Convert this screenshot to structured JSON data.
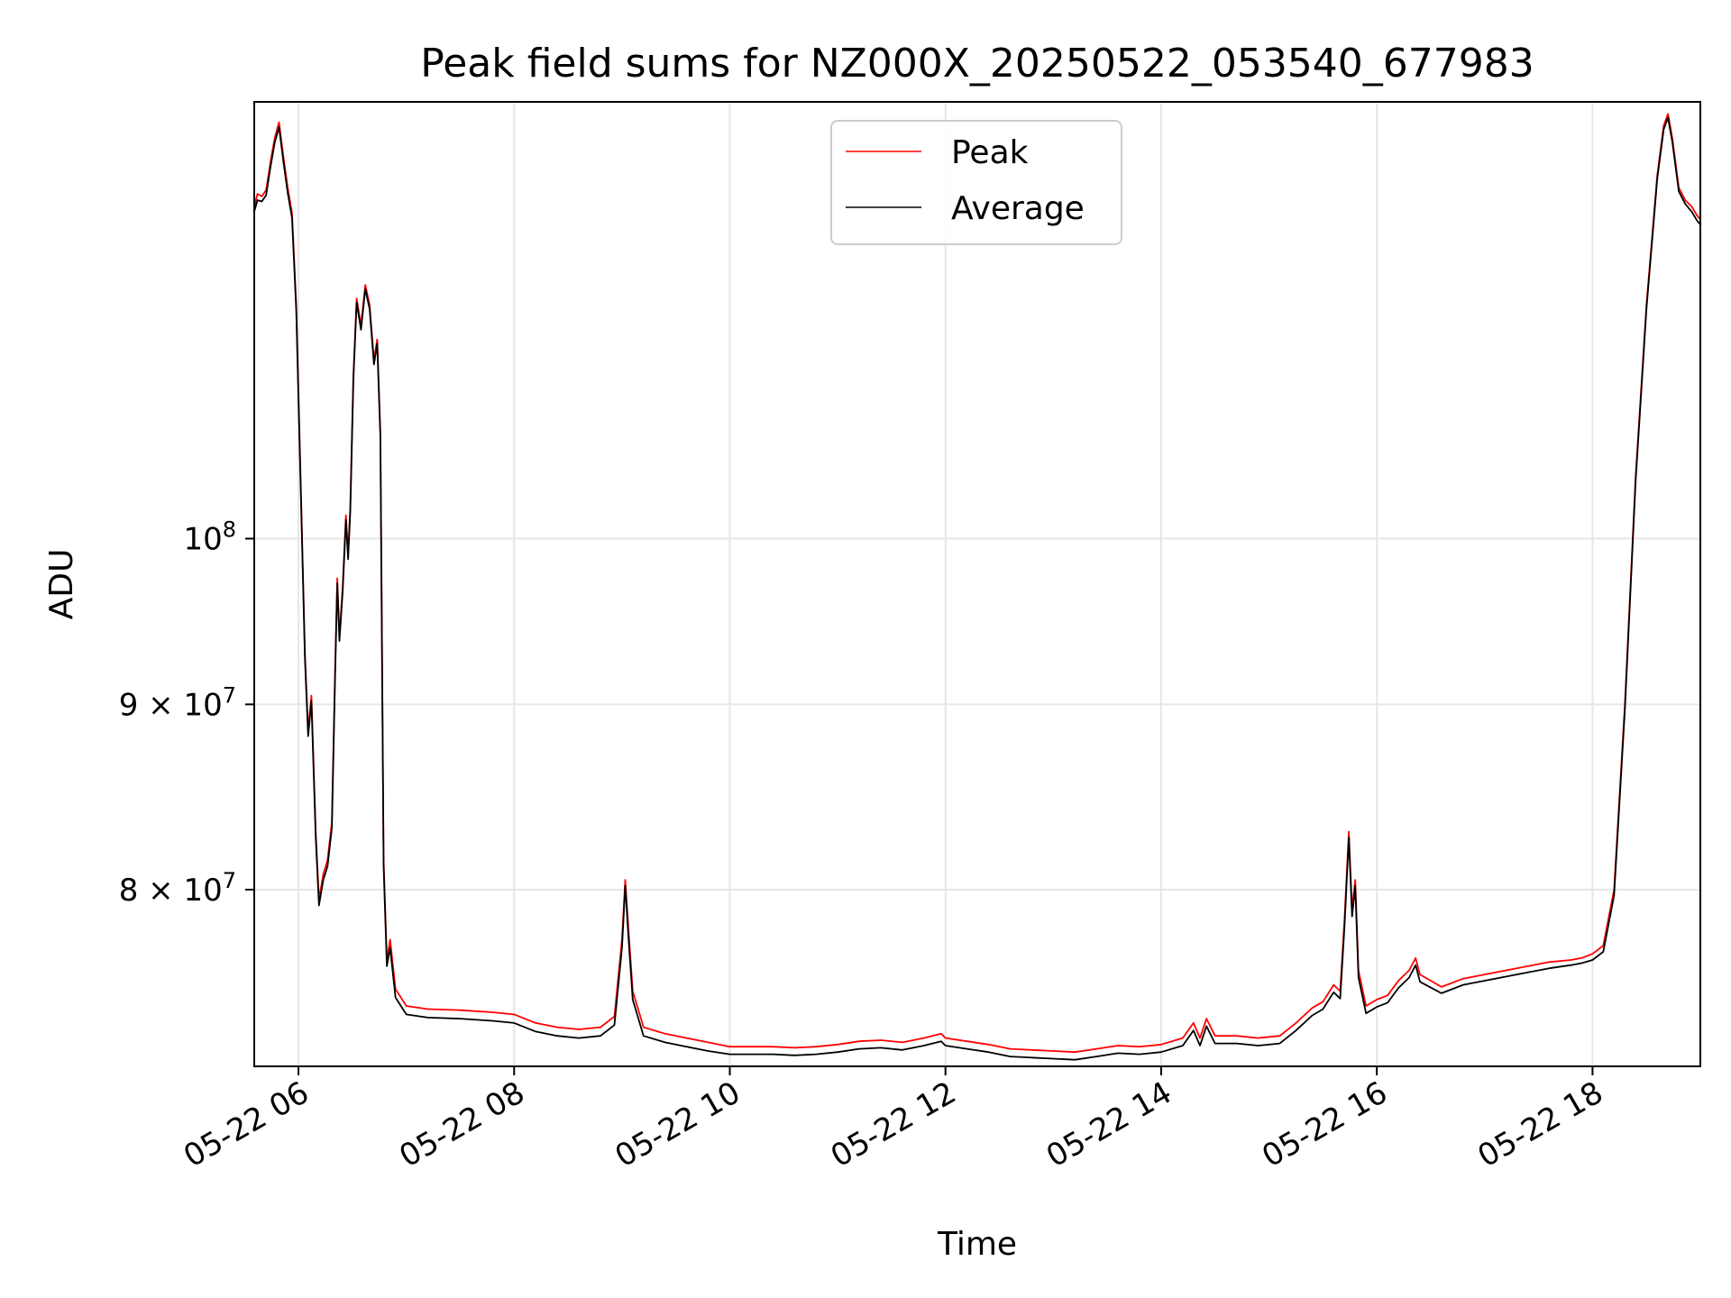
{
  "chart_data": {
    "type": "line",
    "title": "Peak field sums for NZ000X_20250522_053540_677983",
    "xlabel": "Time",
    "ylabel": "ADU",
    "x_unit": "hours of day 2025-05-22 (decimal)",
    "xlim": [
      5.59,
      19.0
    ],
    "ylim": [
      71500000,
      132000000
    ],
    "yscale": "log",
    "grid": true,
    "legend_position": "upper center",
    "x_ticks": [
      {
        "value": 6,
        "label": "05-22 06"
      },
      {
        "value": 8,
        "label": "05-22 08"
      },
      {
        "value": 10,
        "label": "05-22 10"
      },
      {
        "value": 12,
        "label": "05-22 12"
      },
      {
        "value": 14,
        "label": "05-22 14"
      },
      {
        "value": 16,
        "label": "05-22 16"
      },
      {
        "value": 18,
        "label": "05-22 18"
      }
    ],
    "y_ticks": [
      {
        "value": 80000000,
        "label_base": "8 × 10",
        "label_exp": "7"
      },
      {
        "value": 90000000,
        "label_base": "9 × 10",
        "label_exp": "7"
      },
      {
        "value": 100000000,
        "label_base": "10",
        "label_exp": "8"
      }
    ],
    "series": [
      {
        "name": "Peak",
        "color": "#ff0000",
        "points": [
          [
            5.59,
            123500000
          ],
          [
            5.62,
            124500000
          ],
          [
            5.66,
            124300000
          ],
          [
            5.7,
            124800000
          ],
          [
            5.74,
            127000000
          ],
          [
            5.78,
            129000000
          ],
          [
            5.82,
            130300000
          ],
          [
            5.86,
            127500000
          ],
          [
            5.9,
            125000000
          ],
          [
            5.94,
            123000000
          ],
          [
            5.98,
            116000000
          ],
          [
            6.02,
            104000000
          ],
          [
            6.06,
            93000000
          ],
          [
            6.09,
            88500000
          ],
          [
            6.12,
            90500000
          ],
          [
            6.16,
            83000000
          ],
          [
            6.19,
            79500000
          ],
          [
            6.23,
            80800000
          ],
          [
            6.27,
            81500000
          ],
          [
            6.31,
            83500000
          ],
          [
            6.34,
            92000000
          ],
          [
            6.36,
            97500000
          ],
          [
            6.38,
            94000000
          ],
          [
            6.41,
            97000000
          ],
          [
            6.44,
            101500000
          ],
          [
            6.46,
            99000000
          ],
          [
            6.48,
            102000000
          ],
          [
            6.51,
            111000000
          ],
          [
            6.54,
            116500000
          ],
          [
            6.58,
            114500000
          ],
          [
            6.62,
            117500000
          ],
          [
            6.66,
            116000000
          ],
          [
            6.7,
            112000000
          ],
          [
            6.73,
            113500000
          ],
          [
            6.76,
            107000000
          ],
          [
            6.79,
            81500000
          ],
          [
            6.82,
            76500000
          ],
          [
            6.85,
            77500000
          ],
          [
            6.9,
            75100000
          ],
          [
            7.0,
            74300000
          ],
          [
            7.2,
            74150000
          ],
          [
            7.5,
            74100000
          ],
          [
            7.8,
            74000000
          ],
          [
            8.0,
            73900000
          ],
          [
            8.2,
            73500000
          ],
          [
            8.4,
            73300000
          ],
          [
            8.6,
            73200000
          ],
          [
            8.8,
            73300000
          ],
          [
            8.93,
            73800000
          ],
          [
            9.0,
            77500000
          ],
          [
            9.03,
            80500000
          ],
          [
            9.06,
            78000000
          ],
          [
            9.1,
            75000000
          ],
          [
            9.2,
            73300000
          ],
          [
            9.4,
            73000000
          ],
          [
            9.6,
            72800000
          ],
          [
            9.8,
            72600000
          ],
          [
            10.0,
            72400000
          ],
          [
            10.2,
            72400000
          ],
          [
            10.4,
            72400000
          ],
          [
            10.6,
            72350000
          ],
          [
            10.8,
            72400000
          ],
          [
            11.0,
            72500000
          ],
          [
            11.2,
            72650000
          ],
          [
            11.4,
            72700000
          ],
          [
            11.6,
            72600000
          ],
          [
            11.8,
            72800000
          ],
          [
            11.96,
            73000000
          ],
          [
            12.0,
            72800000
          ],
          [
            12.2,
            72650000
          ],
          [
            12.4,
            72500000
          ],
          [
            12.6,
            72300000
          ],
          [
            12.8,
            72250000
          ],
          [
            13.0,
            72200000
          ],
          [
            13.2,
            72150000
          ],
          [
            13.4,
            72300000
          ],
          [
            13.6,
            72450000
          ],
          [
            13.8,
            72400000
          ],
          [
            14.0,
            72500000
          ],
          [
            14.2,
            72800000
          ],
          [
            14.3,
            73500000
          ],
          [
            14.36,
            72800000
          ],
          [
            14.42,
            73700000
          ],
          [
            14.5,
            72900000
          ],
          [
            14.7,
            72900000
          ],
          [
            14.9,
            72800000
          ],
          [
            15.1,
            72900000
          ],
          [
            15.25,
            73500000
          ],
          [
            15.4,
            74200000
          ],
          [
            15.5,
            74500000
          ],
          [
            15.6,
            75300000
          ],
          [
            15.66,
            75000000
          ],
          [
            15.7,
            78500000
          ],
          [
            15.74,
            83000000
          ],
          [
            15.77,
            79000000
          ],
          [
            15.8,
            80500000
          ],
          [
            15.83,
            76000000
          ],
          [
            15.9,
            74300000
          ],
          [
            16.0,
            74600000
          ],
          [
            16.1,
            74800000
          ],
          [
            16.2,
            75500000
          ],
          [
            16.3,
            76000000
          ],
          [
            16.36,
            76600000
          ],
          [
            16.4,
            75800000
          ],
          [
            16.6,
            75200000
          ],
          [
            16.8,
            75600000
          ],
          [
            17.0,
            75800000
          ],
          [
            17.2,
            76000000
          ],
          [
            17.4,
            76200000
          ],
          [
            17.6,
            76400000
          ],
          [
            17.8,
            76500000
          ],
          [
            17.9,
            76600000
          ],
          [
            18.0,
            76800000
          ],
          [
            18.1,
            77200000
          ],
          [
            18.2,
            80000000
          ],
          [
            18.3,
            90000000
          ],
          [
            18.4,
            104000000
          ],
          [
            18.5,
            116000000
          ],
          [
            18.6,
            126000000
          ],
          [
            18.66,
            130000000
          ],
          [
            18.7,
            131000000
          ],
          [
            18.74,
            129000000
          ],
          [
            18.8,
            125000000
          ],
          [
            18.86,
            124000000
          ],
          [
            18.92,
            123500000
          ],
          [
            18.97,
            122800000
          ],
          [
            19.0,
            122500000
          ]
        ]
      },
      {
        "name": "Average",
        "color": "#000000",
        "points": [
          [
            5.59,
            123100000
          ],
          [
            5.62,
            124000000
          ],
          [
            5.66,
            123900000
          ],
          [
            5.7,
            124400000
          ],
          [
            5.74,
            126600000
          ],
          [
            5.78,
            128600000
          ],
          [
            5.82,
            129900000
          ],
          [
            5.86,
            127100000
          ],
          [
            5.9,
            124600000
          ],
          [
            5.94,
            122600000
          ],
          [
            5.98,
            115600000
          ],
          [
            6.02,
            103600000
          ],
          [
            6.06,
            92700000
          ],
          [
            6.09,
            88200000
          ],
          [
            6.12,
            90200000
          ],
          [
            6.16,
            82700000
          ],
          [
            6.19,
            79200000
          ],
          [
            6.23,
            80500000
          ],
          [
            6.27,
            81200000
          ],
          [
            6.31,
            83200000
          ],
          [
            6.34,
            91700000
          ],
          [
            6.36,
            97200000
          ],
          [
            6.38,
            93700000
          ],
          [
            6.41,
            96700000
          ],
          [
            6.44,
            101200000
          ],
          [
            6.46,
            98700000
          ],
          [
            6.48,
            101700000
          ],
          [
            6.51,
            110700000
          ],
          [
            6.54,
            116200000
          ],
          [
            6.58,
            114200000
          ],
          [
            6.62,
            117200000
          ],
          [
            6.66,
            115700000
          ],
          [
            6.7,
            111700000
          ],
          [
            6.73,
            113200000
          ],
          [
            6.76,
            106700000
          ],
          [
            6.79,
            81200000
          ],
          [
            6.82,
            76200000
          ],
          [
            6.85,
            77100000
          ],
          [
            6.9,
            74700000
          ],
          [
            7.0,
            73900000
          ],
          [
            7.2,
            73750000
          ],
          [
            7.5,
            73700000
          ],
          [
            7.8,
            73600000
          ],
          [
            8.0,
            73500000
          ],
          [
            8.2,
            73100000
          ],
          [
            8.4,
            72900000
          ],
          [
            8.6,
            72800000
          ],
          [
            8.8,
            72900000
          ],
          [
            8.93,
            73400000
          ],
          [
            9.0,
            77100000
          ],
          [
            9.03,
            80200000
          ],
          [
            9.06,
            77600000
          ],
          [
            9.1,
            74600000
          ],
          [
            9.2,
            72900000
          ],
          [
            9.4,
            72600000
          ],
          [
            9.6,
            72400000
          ],
          [
            9.8,
            72200000
          ],
          [
            10.0,
            72050000
          ],
          [
            10.2,
            72050000
          ],
          [
            10.4,
            72050000
          ],
          [
            10.6,
            72000000
          ],
          [
            10.8,
            72050000
          ],
          [
            11.0,
            72150000
          ],
          [
            11.2,
            72300000
          ],
          [
            11.4,
            72350000
          ],
          [
            11.6,
            72250000
          ],
          [
            11.8,
            72450000
          ],
          [
            11.96,
            72650000
          ],
          [
            12.0,
            72450000
          ],
          [
            12.2,
            72300000
          ],
          [
            12.4,
            72150000
          ],
          [
            12.6,
            71950000
          ],
          [
            12.8,
            71900000
          ],
          [
            13.0,
            71850000
          ],
          [
            13.2,
            71800000
          ],
          [
            13.4,
            71950000
          ],
          [
            13.6,
            72100000
          ],
          [
            13.8,
            72050000
          ],
          [
            14.0,
            72150000
          ],
          [
            14.2,
            72450000
          ],
          [
            14.3,
            73150000
          ],
          [
            14.36,
            72450000
          ],
          [
            14.42,
            73350000
          ],
          [
            14.5,
            72550000
          ],
          [
            14.7,
            72550000
          ],
          [
            14.9,
            72450000
          ],
          [
            15.1,
            72550000
          ],
          [
            15.25,
            73150000
          ],
          [
            15.4,
            73850000
          ],
          [
            15.5,
            74150000
          ],
          [
            15.6,
            74950000
          ],
          [
            15.66,
            74650000
          ],
          [
            15.7,
            78150000
          ],
          [
            15.74,
            82700000
          ],
          [
            15.77,
            78650000
          ],
          [
            15.8,
            80200000
          ],
          [
            15.83,
            75650000
          ],
          [
            15.9,
            73950000
          ],
          [
            16.0,
            74250000
          ],
          [
            16.1,
            74450000
          ],
          [
            16.2,
            75150000
          ],
          [
            16.3,
            75650000
          ],
          [
            16.36,
            76250000
          ],
          [
            16.4,
            75450000
          ],
          [
            16.6,
            74900000
          ],
          [
            16.8,
            75300000
          ],
          [
            17.0,
            75500000
          ],
          [
            17.2,
            75700000
          ],
          [
            17.4,
            75900000
          ],
          [
            17.6,
            76100000
          ],
          [
            17.8,
            76250000
          ],
          [
            17.9,
            76350000
          ],
          [
            18.0,
            76500000
          ],
          [
            18.1,
            76900000
          ],
          [
            18.2,
            79700000
          ],
          [
            18.3,
            89700000
          ],
          [
            18.4,
            103700000
          ],
          [
            18.5,
            115700000
          ],
          [
            18.6,
            125700000
          ],
          [
            18.66,
            129700000
          ],
          [
            18.7,
            130700000
          ],
          [
            18.74,
            128700000
          ],
          [
            18.8,
            124700000
          ],
          [
            18.86,
            123700000
          ],
          [
            18.92,
            123100000
          ],
          [
            18.97,
            122400000
          ],
          [
            19.0,
            122100000
          ]
        ]
      }
    ]
  }
}
